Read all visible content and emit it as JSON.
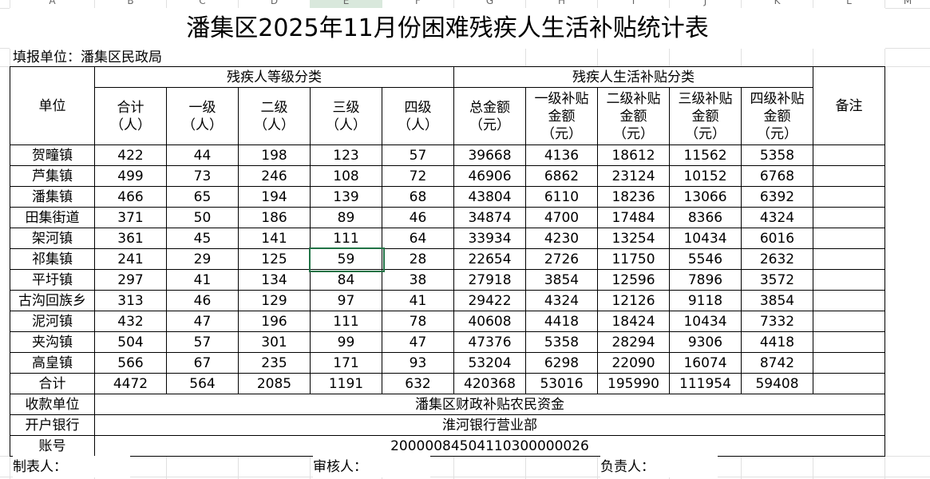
{
  "column_letters": [
    "A",
    "B",
    "C",
    "D",
    "E",
    "F",
    "G",
    "H",
    "I",
    "J",
    "K",
    "L",
    "M"
  ],
  "title": "潘集区2025年11月份困难残疾人生活补贴统计表",
  "reporting_unit": "填报单位：潘集区民政局",
  "table": {
    "header": {
      "unit": "单位",
      "group_1": "残疾人等级分类",
      "group_2": "残疾人生活补贴分类",
      "remarks": "备注",
      "columns": [
        "合计\n（人）",
        "一级\n（人）",
        "二级\n（人）",
        "三级\n（人）",
        "四级\n（人）",
        "总金额\n（元）",
        "一级补贴\n金额\n（元）",
        "二级补贴\n金额\n（元）",
        "三级补贴\n金额\n（元）",
        "四级补贴\n金额\n（元）"
      ]
    },
    "rows": [
      [
        "贺疃镇",
        422,
        44,
        198,
        123,
        57,
        39668,
        4136,
        18612,
        11562,
        5358
      ],
      [
        "芦集镇",
        499,
        73,
        246,
        108,
        72,
        46906,
        6862,
        23124,
        10152,
        6768
      ],
      [
        "潘集镇",
        466,
        65,
        194,
        139,
        68,
        43804,
        6110,
        18236,
        13066,
        6392
      ],
      [
        "田集街道",
        371,
        50,
        186,
        89,
        46,
        34874,
        4700,
        17484,
        8366,
        4324
      ],
      [
        "架河镇",
        361,
        45,
        141,
        111,
        64,
        33934,
        4230,
        13254,
        10434,
        6016
      ],
      [
        "祁集镇",
        241,
        29,
        125,
        59,
        28,
        22654,
        2726,
        11750,
        5546,
        2632
      ],
      [
        "平圩镇",
        297,
        41,
        134,
        84,
        38,
        27918,
        3854,
        12596,
        7896,
        3572
      ],
      [
        "古沟回族乡",
        313,
        46,
        129,
        97,
        41,
        29422,
        4324,
        12126,
        9118,
        3854
      ],
      [
        "泥河镇",
        432,
        47,
        196,
        111,
        78,
        40608,
        4418,
        18424,
        10434,
        7332
      ],
      [
        "夹沟镇",
        504,
        57,
        301,
        99,
        47,
        47376,
        5358,
        28294,
        9306,
        4418
      ],
      [
        "高皇镇",
        566,
        67,
        235,
        171,
        93,
        53204,
        6298,
        22090,
        16074,
        8742
      ]
    ],
    "total": [
      "合计",
      4472,
      564,
      2085,
      1191,
      632,
      420368,
      53016,
      195990,
      111954,
      59408
    ]
  },
  "footer": {
    "payee_label": "收款单位",
    "payee": "潘集区财政补贴农民资金",
    "bank_label": "开户银行",
    "bank": "淮河银行营业部",
    "account_label": "账号",
    "account": "20000084504110300000026"
  },
  "signatures": [
    "制表人：",
    "审核人：",
    "负责人："
  ]
}
